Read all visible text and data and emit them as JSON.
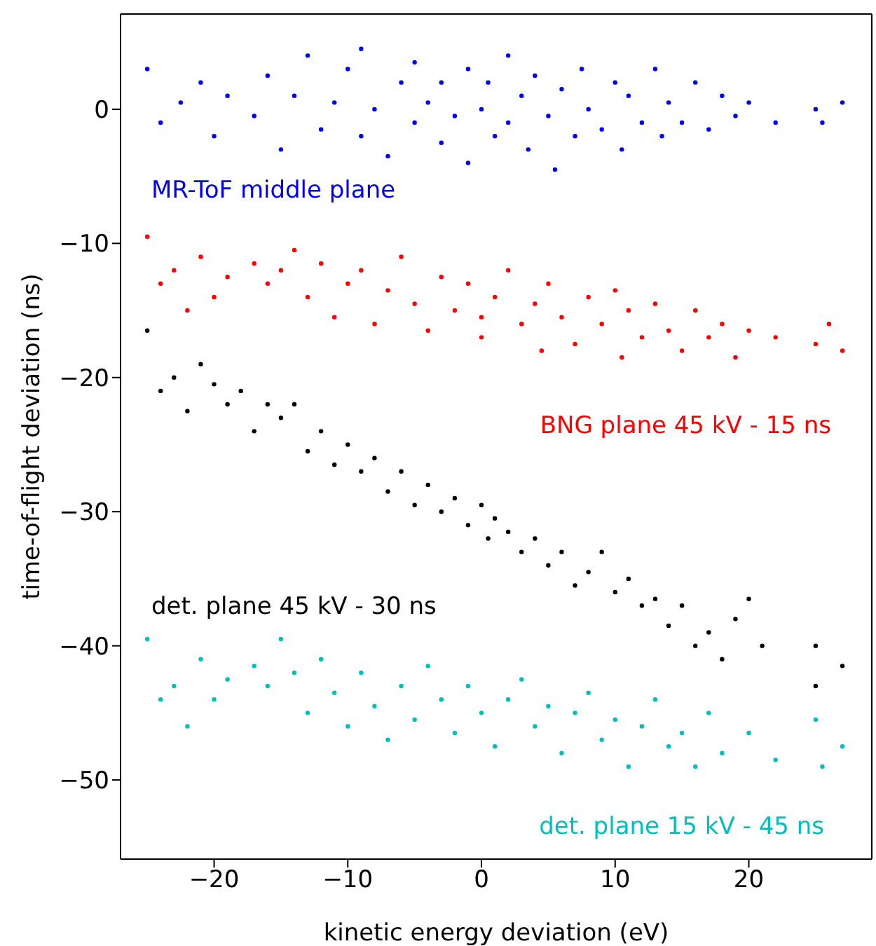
{
  "chart_data": {
    "type": "scatter",
    "xlabel": "kinetic energy deviation (eV)",
    "ylabel": "time-of-flight deviation (ns)",
    "xlim": [
      -27,
      29.2
    ],
    "ylim": [
      -55.9,
      7.1
    ],
    "xticks": [
      {
        "value": -20,
        "label": "−20"
      },
      {
        "value": -10,
        "label": "−10"
      },
      0,
      10,
      20
    ],
    "yticks": [
      {
        "value": -50,
        "label": "−50"
      },
      {
        "value": -40,
        "label": "−40"
      },
      {
        "value": -30,
        "label": "−30"
      },
      {
        "value": -20,
        "label": "−20"
      },
      {
        "value": -10,
        "label": "−10"
      },
      0
    ],
    "marker": "circle",
    "series": [
      {
        "name": "MR-ToF middle plane",
        "color": "#0000ff",
        "x": [
          -25,
          -24,
          -22.5,
          -21,
          -20,
          -19,
          -17,
          -16,
          -15,
          -14,
          -13,
          -12,
          -11,
          -10,
          -9,
          -9,
          -8,
          -7,
          -6,
          -5,
          -5,
          -4,
          -3,
          -3,
          -2,
          -1,
          -1,
          0,
          0.5,
          1,
          2,
          2,
          3,
          3.5,
          4,
          5,
          5.5,
          6,
          7,
          7.5,
          8,
          9,
          10,
          10.5,
          11,
          12,
          13,
          13.5,
          14,
          15,
          16,
          17,
          18,
          19,
          20,
          22,
          25,
          25.5,
          27
        ],
        "values": [
          3,
          -1,
          0.5,
          2,
          -2,
          1,
          -0.5,
          2.5,
          -3,
          1,
          4,
          -1.5,
          0.5,
          3,
          -2,
          4.5,
          0,
          -3.5,
          2,
          -1,
          3.5,
          0.5,
          -2.5,
          2,
          -0.5,
          3,
          -4,
          0,
          2,
          -2,
          4,
          -1,
          1,
          -3,
          2.5,
          -0.5,
          -4.5,
          1.5,
          -2,
          3,
          0,
          -1.5,
          2,
          -3,
          1,
          -1,
          3,
          -2,
          0.5,
          -1,
          2,
          -1.5,
          1,
          -0.5,
          0.5,
          -1,
          0,
          -1,
          0.5
        ]
      },
      {
        "name": "BNG plane 45 kV - 15 ns",
        "color": "#ff0000",
        "x": [
          -25,
          -24,
          -23,
          -22,
          -21,
          -20,
          -19,
          -17,
          -16,
          -15,
          -14,
          -13,
          -12,
          -11,
          -10,
          -9,
          -8,
          -7,
          -6,
          -5,
          -4,
          -3,
          -2,
          -1,
          0,
          0,
          1,
          2,
          3,
          4,
          4.5,
          5,
          6,
          7,
          8,
          9,
          10,
          10.5,
          11,
          12,
          13,
          14,
          15,
          16,
          17,
          18,
          19,
          20,
          22,
          25,
          26,
          27
        ],
        "values": [
          -9.5,
          -13,
          -12,
          -15,
          -11,
          -14,
          -12.5,
          -11.5,
          -13,
          -12,
          -10.5,
          -14,
          -11.5,
          -15.5,
          -13,
          -12,
          -16,
          -13.5,
          -11,
          -14.5,
          -16.5,
          -12.5,
          -15,
          -13,
          -17,
          -15.5,
          -14,
          -12,
          -16,
          -14.5,
          -18,
          -13,
          -15.5,
          -17.5,
          -14,
          -16,
          -13.5,
          -18.5,
          -15,
          -17,
          -14.5,
          -16.5,
          -18,
          -15,
          -17,
          -16,
          -18.5,
          -16.5,
          -17,
          -17.5,
          -16,
          -18
        ]
      },
      {
        "name": "det. plane 45 kV - 30 ns",
        "color": "#000000",
        "x": [
          -25,
          -24,
          -23,
          -22,
          -21,
          -20,
          -19,
          -18,
          -17,
          -16,
          -15,
          -14,
          -13,
          -12,
          -11,
          -10,
          -9,
          -8,
          -7,
          -6,
          -5,
          -4,
          -3,
          -2,
          -1,
          0,
          0.5,
          1,
          2,
          3,
          4,
          5,
          6,
          7,
          8,
          9,
          10,
          11,
          12,
          13,
          14,
          15,
          16,
          17,
          18,
          19,
          20,
          21,
          25,
          25,
          27
        ],
        "values": [
          -16.5,
          -21,
          -20,
          -22.5,
          -19,
          -20.5,
          -22,
          -21,
          -24,
          -22,
          -23,
          -22,
          -25.5,
          -24,
          -26.5,
          -25,
          -27,
          -26,
          -28.5,
          -27,
          -29.5,
          -28,
          -30,
          -29,
          -31,
          -29.5,
          -32,
          -30.5,
          -31.5,
          -33,
          -32,
          -34,
          -33,
          -35.5,
          -34.5,
          -33,
          -36,
          -35,
          -37,
          -36.5,
          -38.5,
          -37,
          -40,
          -39,
          -41,
          -38,
          -36.5,
          -40,
          -40,
          -43,
          -41.5
        ]
      },
      {
        "name": "det. plane 15 kV - 45 ns",
        "color": "#00bfbf",
        "x": [
          -25,
          -24,
          -23,
          -22,
          -21,
          -20,
          -19,
          -17,
          -16,
          -15,
          -14,
          -13,
          -12,
          -11,
          -10,
          -9,
          -8,
          -7,
          -6,
          -5,
          -4,
          -3,
          -2,
          -1,
          0,
          1,
          2,
          3,
          4,
          5,
          6,
          7,
          8,
          9,
          10,
          11,
          12,
          13,
          14,
          15,
          16,
          17,
          18,
          20,
          22,
          25,
          25.5,
          27
        ],
        "values": [
          -39.5,
          -44,
          -43,
          -46,
          -41,
          -44,
          -42.5,
          -41.5,
          -43,
          -39.5,
          -42,
          -45,
          -41,
          -43.5,
          -46,
          -42,
          -44.5,
          -47,
          -43,
          -45.5,
          -41.5,
          -44,
          -46.5,
          -43,
          -45,
          -47.5,
          -44,
          -42.5,
          -46,
          -44.5,
          -48,
          -45,
          -43.5,
          -47,
          -45.5,
          -49,
          -46,
          -44,
          -47.5,
          -46.5,
          -49,
          -45,
          -48,
          -46.5,
          -48.5,
          -45.5,
          -49,
          -47.5
        ]
      }
    ]
  }
}
